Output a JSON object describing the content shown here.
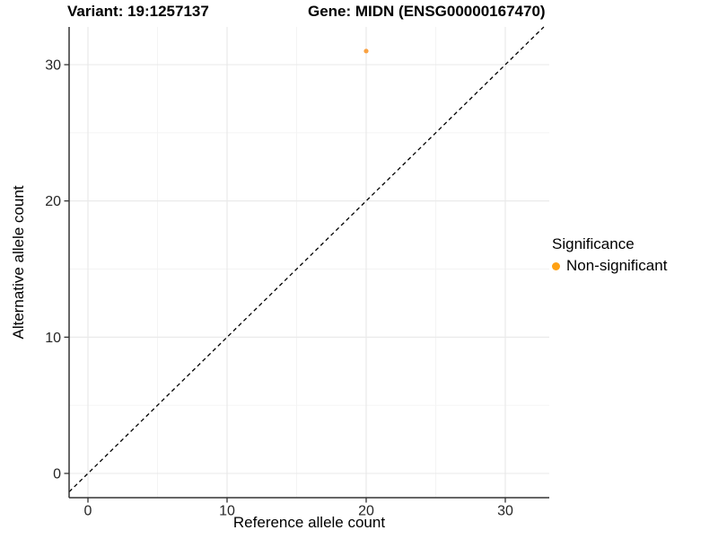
{
  "chart_data": {
    "type": "scatter",
    "titles": {
      "left": "Variant: 19:1257137",
      "right": "Gene: MIDN (ENSG00000167470)"
    },
    "xlabel": "Reference allele count",
    "ylabel": "Alternative allele count",
    "x_ticks": [
      0,
      10,
      20,
      30
    ],
    "y_ticks": [
      0,
      10,
      20,
      30
    ],
    "x_minor_gridlines": [
      5,
      15,
      25
    ],
    "y_minor_gridlines": [
      5,
      15,
      25
    ],
    "xlim": [
      -1.4,
      33.2
    ],
    "ylim": [
      -1.8,
      32.8
    ],
    "grid": "major and minor gridlines, light gray on white background",
    "series": [
      {
        "name": "Non-significant",
        "color": "#F9A242",
        "points": [
          {
            "x": 20,
            "y": 31
          }
        ]
      }
    ],
    "reference_line": {
      "kind": "identity (y = x)",
      "style": "dashed",
      "color": "#000000"
    },
    "legend": {
      "position": "right",
      "title": "Significance",
      "items": [
        {
          "label": "Non-significant",
          "color": "#FFA113"
        }
      ]
    }
  },
  "colors": {
    "background": "#FFFFFF",
    "grid_major": "#E8E8E8",
    "grid_minor": "#F3F3F3",
    "axis_line": "#333333",
    "tick_mark": "#333333",
    "tick_label": "#262626",
    "title_text": "#000000"
  }
}
